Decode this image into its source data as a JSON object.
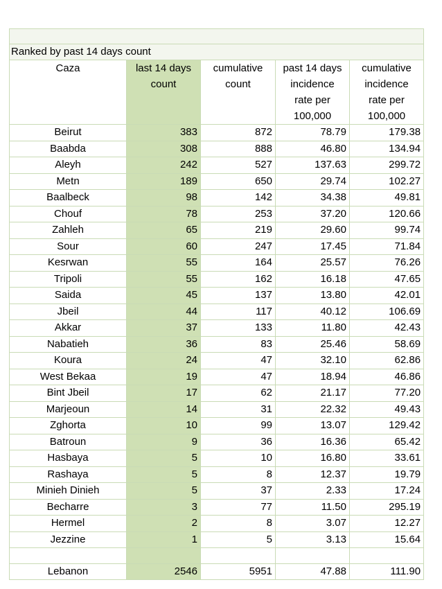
{
  "subtitle": "Ranked by past 14 days count",
  "headers": {
    "caza": "Caza",
    "last14_line1": "last 14 days",
    "last14_line2": "count",
    "cumulative_line1": "cumulative",
    "cumulative_line2": "count",
    "rate14_line1": "past 14 days",
    "rate14_line2": "incidence",
    "rate14_line3": "rate per",
    "rate14_line4": "100,000",
    "cumrate_line1": "cumulative",
    "cumrate_line2": "incidence",
    "cumrate_line3": "rate per",
    "cumrate_line4": "100,000"
  },
  "rows": [
    {
      "caza": "Beirut",
      "last14": "383",
      "cumulative": "872",
      "rate14": "78.79",
      "cumrate": "179.38"
    },
    {
      "caza": "Baabda",
      "last14": "308",
      "cumulative": "888",
      "rate14": "46.80",
      "cumrate": "134.94"
    },
    {
      "caza": "Aleyh",
      "last14": "242",
      "cumulative": "527",
      "rate14": "137.63",
      "cumrate": "299.72"
    },
    {
      "caza": "Metn",
      "last14": "189",
      "cumulative": "650",
      "rate14": "29.74",
      "cumrate": "102.27"
    },
    {
      "caza": "Baalbeck",
      "last14": "98",
      "cumulative": "142",
      "rate14": "34.38",
      "cumrate": "49.81"
    },
    {
      "caza": "Chouf",
      "last14": "78",
      "cumulative": "253",
      "rate14": "37.20",
      "cumrate": "120.66"
    },
    {
      "caza": "Zahleh",
      "last14": "65",
      "cumulative": "219",
      "rate14": "29.60",
      "cumrate": "99.74"
    },
    {
      "caza": "Sour",
      "last14": "60",
      "cumulative": "247",
      "rate14": "17.45",
      "cumrate": "71.84"
    },
    {
      "caza": "Kesrwan",
      "last14": "55",
      "cumulative": "164",
      "rate14": "25.57",
      "cumrate": "76.26"
    },
    {
      "caza": "Tripoli",
      "last14": "55",
      "cumulative": "162",
      "rate14": "16.18",
      "cumrate": "47.65"
    },
    {
      "caza": "Saida",
      "last14": "45",
      "cumulative": "137",
      "rate14": "13.80",
      "cumrate": "42.01"
    },
    {
      "caza": "Jbeil",
      "last14": "44",
      "cumulative": "117",
      "rate14": "40.12",
      "cumrate": "106.69"
    },
    {
      "caza": "Akkar",
      "last14": "37",
      "cumulative": "133",
      "rate14": "11.80",
      "cumrate": "42.43"
    },
    {
      "caza": "Nabatieh",
      "last14": "36",
      "cumulative": "83",
      "rate14": "25.46",
      "cumrate": "58.69"
    },
    {
      "caza": "Koura",
      "last14": "24",
      "cumulative": "47",
      "rate14": "32.10",
      "cumrate": "62.86"
    },
    {
      "caza": "West Bekaa",
      "last14": "19",
      "cumulative": "47",
      "rate14": "18.94",
      "cumrate": "46.86"
    },
    {
      "caza": "Bint Jbeil",
      "last14": "17",
      "cumulative": "62",
      "rate14": "21.17",
      "cumrate": "77.20"
    },
    {
      "caza": "Marjeoun",
      "last14": "14",
      "cumulative": "31",
      "rate14": "22.32",
      "cumrate": "49.43"
    },
    {
      "caza": "Zghorta",
      "last14": "10",
      "cumulative": "99",
      "rate14": "13.07",
      "cumrate": "129.42"
    },
    {
      "caza": "Batroun",
      "last14": "9",
      "cumulative": "36",
      "rate14": "16.36",
      "cumrate": "65.42"
    },
    {
      "caza": "Hasbaya",
      "last14": "5",
      "cumulative": "10",
      "rate14": "16.80",
      "cumrate": "33.61"
    },
    {
      "caza": "Rashaya",
      "last14": "5",
      "cumulative": "8",
      "rate14": "12.37",
      "cumrate": "19.79"
    },
    {
      "caza": "Minieh Dinieh",
      "last14": "5",
      "cumulative": "37",
      "rate14": "2.33",
      "cumrate": "17.24"
    },
    {
      "caza": "Becharre",
      "last14": "3",
      "cumulative": "77",
      "rate14": "11.50",
      "cumrate": "295.19"
    },
    {
      "caza": "Hermel",
      "last14": "2",
      "cumulative": "8",
      "rate14": "3.07",
      "cumrate": "12.27"
    },
    {
      "caza": "Jezzine",
      "last14": "1",
      "cumulative": "5",
      "rate14": "3.13",
      "cumrate": "15.64"
    }
  ],
  "total": {
    "caza": "Lebanon",
    "last14": "2546",
    "cumulative": "5951",
    "rate14": "47.88",
    "cumrate": "111.90"
  }
}
